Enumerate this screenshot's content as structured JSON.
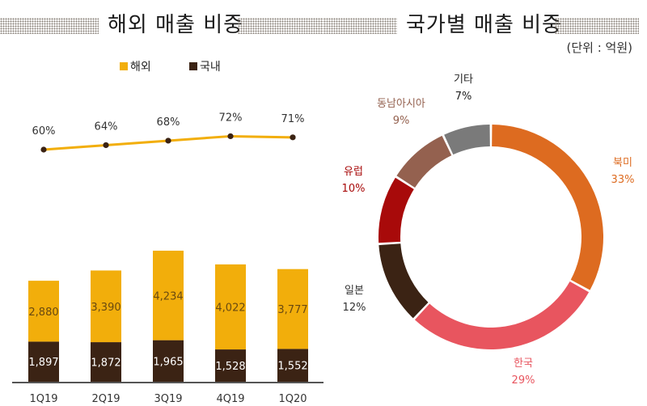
{
  "left_title": "해외 매출 비중",
  "right_title": "국가별 매출 비중",
  "unit_label": "(단위 : 억원)",
  "colors": {
    "overseas": "#F2AE0B",
    "domestic": "#3B2314",
    "line": "#F2AE0B",
    "marker": "#3B2314"
  },
  "chart_data": [
    {
      "type": "bar",
      "stacked": true,
      "title": "해외 매출 비중",
      "categories": [
        "1Q19",
        "2Q19",
        "3Q19",
        "4Q19",
        "1Q20"
      ],
      "series": [
        {
          "name": "국내",
          "color": "#3B2314",
          "values": [
            1897,
            1872,
            1965,
            1528,
            1552
          ],
          "labels": [
            "1,897",
            "1,872",
            "1,965",
            "1,528",
            "1,552"
          ]
        },
        {
          "name": "해외",
          "color": "#F2AE0B",
          "values": [
            2880,
            3390,
            4234,
            4022,
            3777
          ],
          "labels": [
            "2,880",
            "3,390",
            "4,234",
            "4,022",
            "3,777"
          ]
        }
      ],
      "line_series": {
        "name": "해외 비중",
        "values": [
          60,
          64,
          68,
          72,
          71
        ],
        "labels": [
          "60%",
          "64%",
          "68%",
          "72%",
          "71%"
        ]
      },
      "legend": [
        {
          "label": "해외",
          "color": "#F2AE0B"
        },
        {
          "label": "국내",
          "color": "#3B2314"
        }
      ],
      "legend_position": "top",
      "grid": false,
      "xlabel": "",
      "ylabel": ""
    },
    {
      "type": "pie",
      "donut": true,
      "title": "국가별 매출 비중",
      "slices": [
        {
          "name": "북미",
          "value": 33,
          "label": "33%",
          "color": "#DD6B20",
          "label_color": "#DD6B20"
        },
        {
          "name": "한국",
          "value": 29,
          "label": "29%",
          "color": "#E8555F",
          "label_color": "#E8555F"
        },
        {
          "name": "일본",
          "value": 12,
          "label": "12%",
          "color": "#3B2314",
          "label_color": "#333333"
        },
        {
          "name": "유럽",
          "value": 10,
          "label": "10%",
          "color": "#A80A0A",
          "label_color": "#A80A0A"
        },
        {
          "name": "동남아시아",
          "value": 9,
          "label": "9%",
          "color": "#94614F",
          "label_color": "#94614F"
        },
        {
          "name": "기타",
          "value": 7,
          "label": "7%",
          "color": "#7A7A7A",
          "label_color": "#222222"
        }
      ]
    }
  ]
}
